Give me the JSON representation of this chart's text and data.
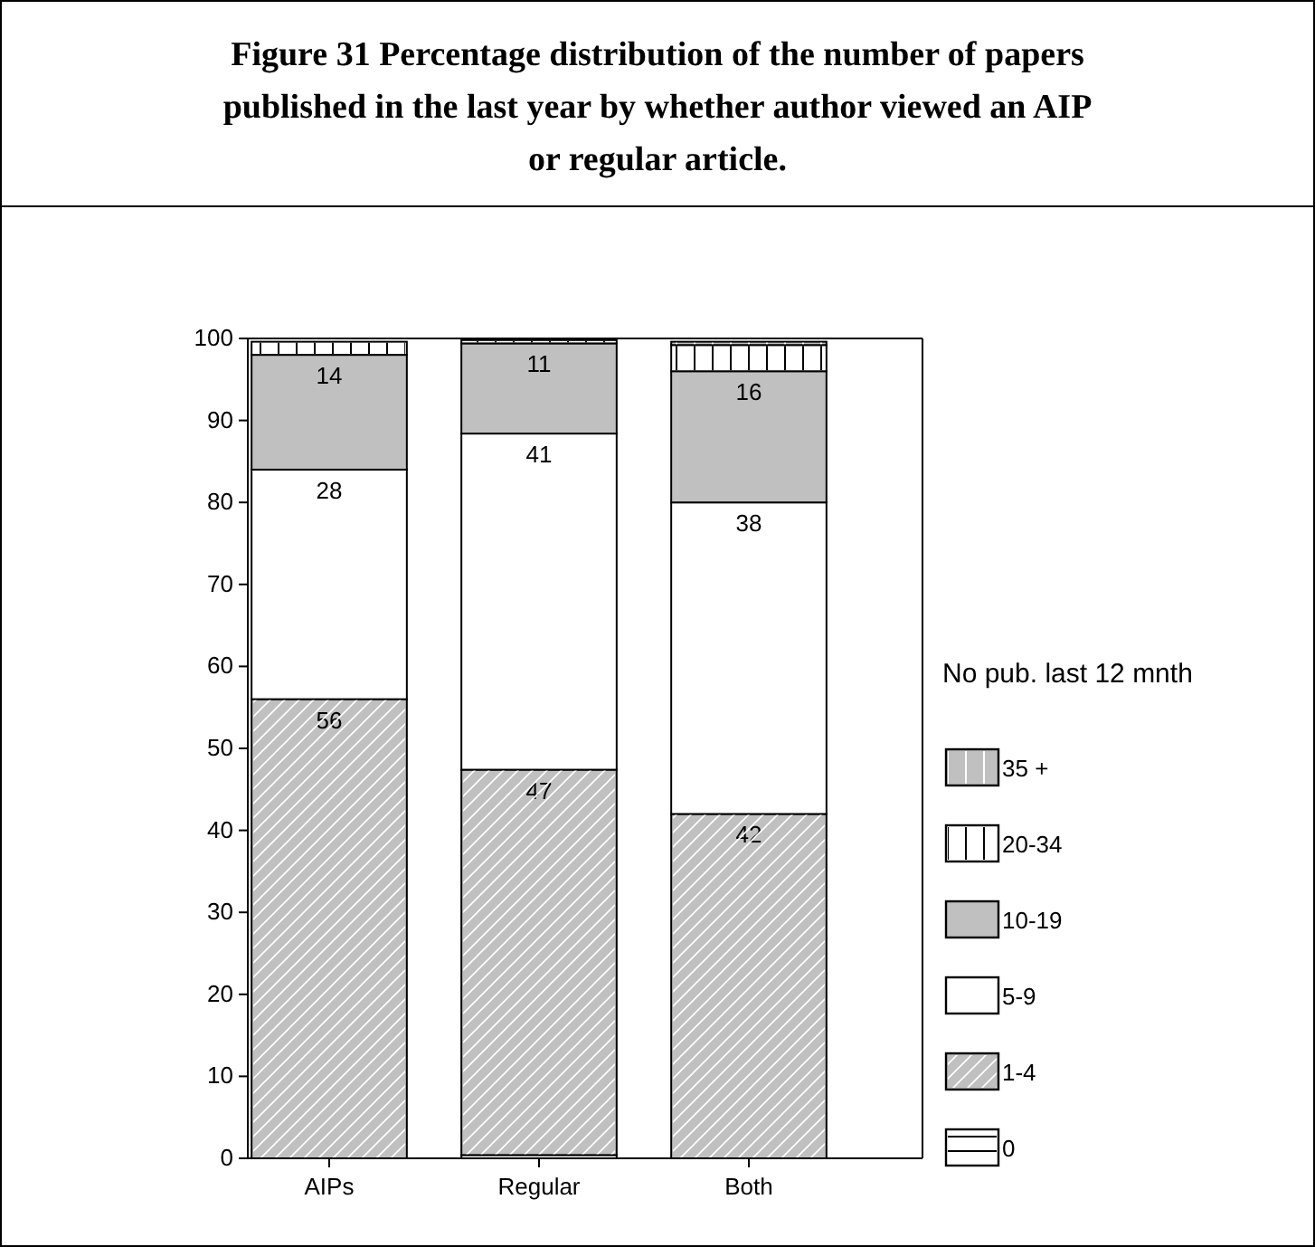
{
  "chart_data": {
    "type": "bar",
    "title": "Figure 31 Percentage distribution of the number of papers published in the last year by whether author viewed an AIP or regular article.",
    "categories": [
      "AIPs",
      "Regular",
      "Both"
    ],
    "stacked": true,
    "ylim": [
      0,
      100
    ],
    "yticks": [
      0,
      10,
      20,
      30,
      40,
      50,
      60,
      70,
      80,
      90,
      100
    ],
    "grid": false,
    "legend": "right",
    "legend_title": "No pub. last 12 mnth",
    "series": [
      {
        "name": "0",
        "color": "#ffffff",
        "values": [
          null,
          0.4,
          null
        ],
        "value_labels": [
          null,
          null,
          null
        ]
      },
      {
        "name": "1-4",
        "color": "#c0c0c0",
        "values": [
          56,
          47,
          42
        ],
        "value_labels": [
          "56",
          "47",
          "42"
        ]
      },
      {
        "name": "5-9",
        "color": "#ffffff",
        "values": [
          28,
          41,
          38
        ],
        "value_labels": [
          "28",
          "41",
          "38"
        ]
      },
      {
        "name": "10-19",
        "color": "#c0c0c0",
        "values": [
          14,
          11,
          16
        ],
        "value_labels": [
          "14",
          "11",
          "16"
        ]
      },
      {
        "name": "20-34",
        "color": "#ffffff",
        "values": [
          1.6,
          0.4,
          3.2
        ],
        "value_labels": [
          null,
          null,
          null
        ]
      },
      {
        "name": "35 +",
        "color": "#c0c0c0",
        "values": [
          null,
          null,
          0.4
        ],
        "value_labels": [
          null,
          null,
          null
        ]
      }
    ]
  }
}
